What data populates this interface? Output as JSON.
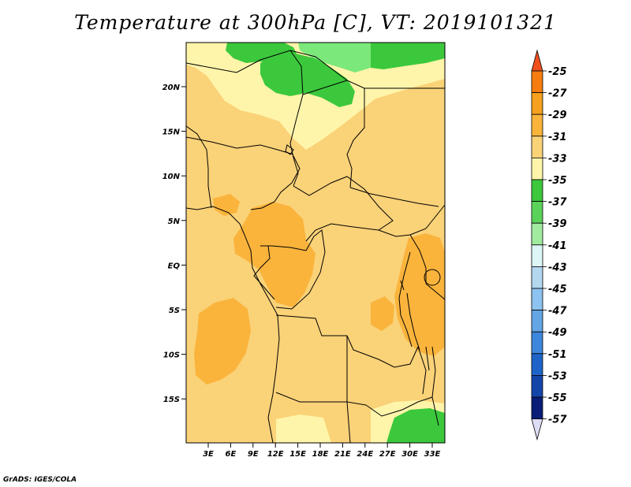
{
  "title": "Temperature at 300hPa [C], VT: 2019101321",
  "credit": "GrADS: IGES/COLA",
  "lat_ticks": [
    "20N",
    "15N",
    "10N",
    "5N",
    "EQ",
    "5S",
    "10S",
    "15S"
  ],
  "lon_ticks": [
    "3E",
    "6E",
    "9E",
    "12E",
    "15E",
    "18E",
    "21E",
    "24E",
    "27E",
    "30E",
    "33E"
  ],
  "colorbar": [
    {
      "label": "-25",
      "color": "#f0501e"
    },
    {
      "label": "-27",
      "color": "#f57d0f"
    },
    {
      "label": "-29",
      "color": "#f5a01e"
    },
    {
      "label": "-31",
      "color": "#fab43c"
    },
    {
      "label": "-33",
      "color": "#fad278"
    },
    {
      "label": "-35",
      "color": "#fff5aa"
    },
    {
      "label": "-37",
      "color": "#3cc83c"
    },
    {
      "label": "-39",
      "color": "#5ad25a"
    },
    {
      "label": "-41",
      "color": "#a0eba0"
    },
    {
      "label": "-43",
      "color": "#dcf5f5"
    },
    {
      "label": "-45",
      "color": "#b4d7f0"
    },
    {
      "label": "-47",
      "color": "#8cc3f0"
    },
    {
      "label": "-49",
      "color": "#64a5e6"
    },
    {
      "label": "-51",
      "color": "#3c87dc"
    },
    {
      "label": "-53",
      "color": "#1e64c8"
    },
    {
      "label": "-55",
      "color": "#1446aa"
    },
    {
      "label": "-57",
      "color": "#0a1e78"
    }
  ],
  "colorbar_low_end_color": "#dcdcf5",
  "colors": {
    "base": "#fad278",
    "warm": "#fab43c",
    "cool": "#fff5aa",
    "green": "#3cc83c",
    "light_green": "#7be87b"
  }
}
